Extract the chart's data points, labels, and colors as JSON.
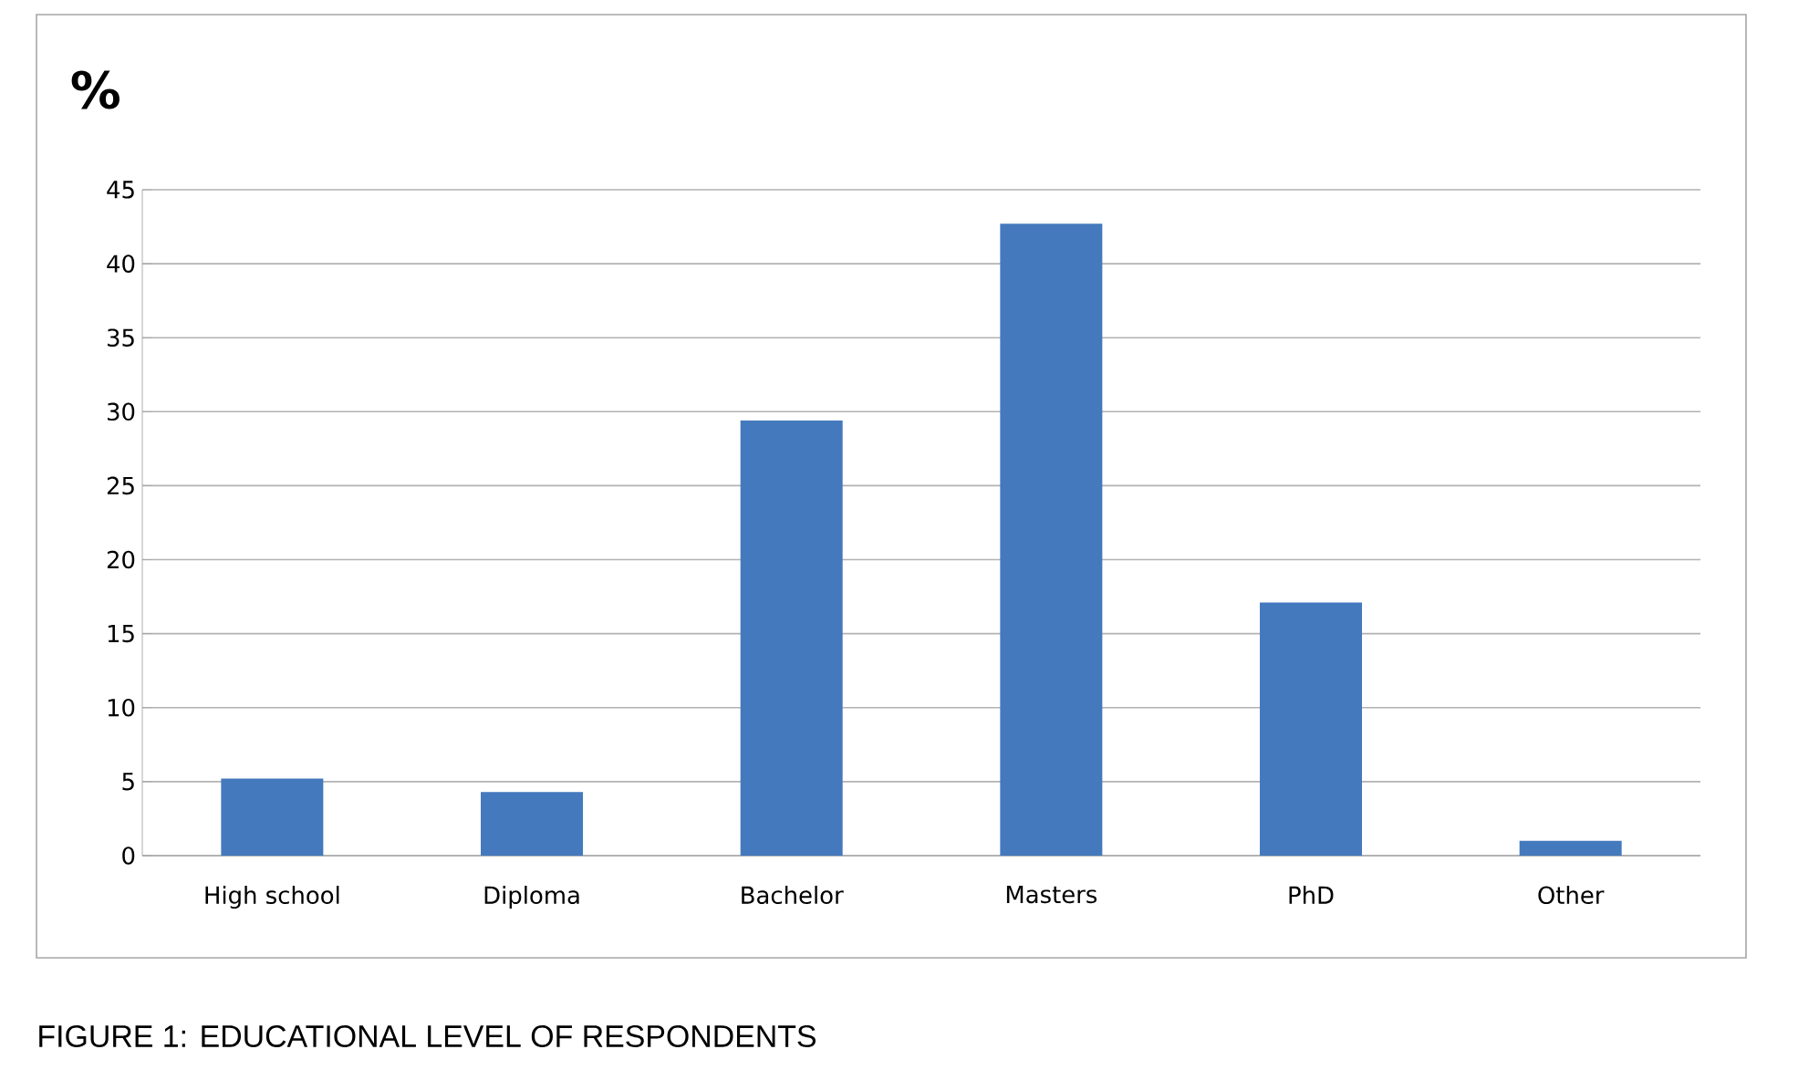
{
  "chart_data": {
    "type": "bar",
    "ylabel": "%",
    "categories": [
      "High school",
      "Diploma",
      "Bachelor",
      "Masters",
      "PhD",
      "Other"
    ],
    "values": [
      5.2,
      4.3,
      29.4,
      42.7,
      17.1,
      1.0
    ],
    "color": "#4479bd",
    "ylim": [
      0,
      45
    ],
    "yticks": [
      0,
      5,
      10,
      15,
      20,
      25,
      30,
      35,
      40,
      45
    ],
    "grid": "y",
    "annotations": [
      "FIGURE 1: EDUCATIONAL LEVEL OF RESPONDENTS"
    ]
  }
}
